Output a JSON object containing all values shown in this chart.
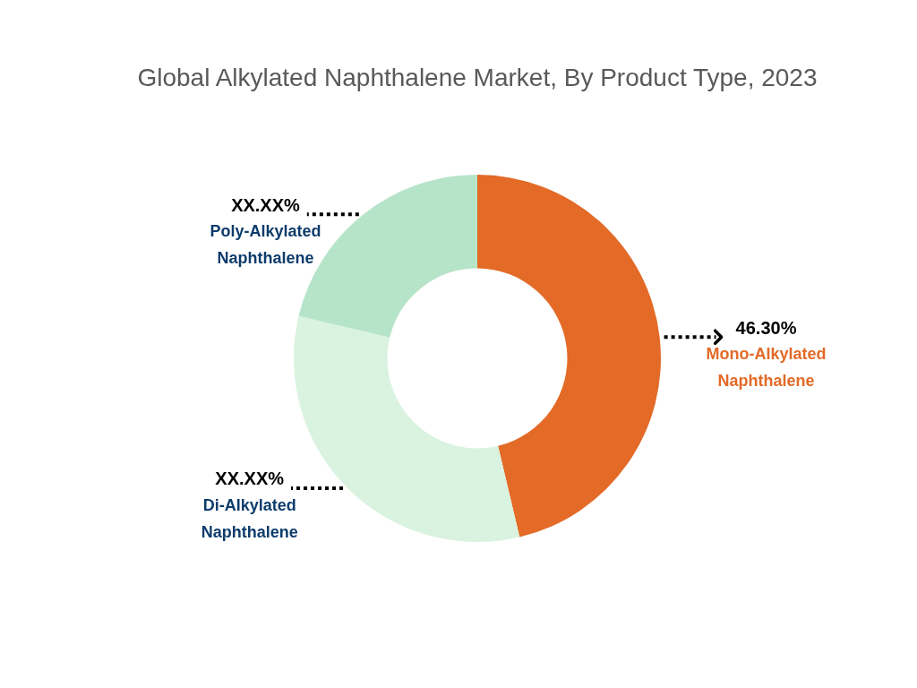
{
  "chart_data": {
    "type": "donut",
    "title": "Global Alkylated Naphthalene Market, By Product Type, 2023",
    "categories": [
      "Mono-Alkylated Naphthalene",
      "Di-Alkylated Naphthalene",
      "Poly-Alkylated Naphthalene"
    ],
    "values": [
      46.3,
      32.4,
      21.3
    ],
    "colors": [
      "#e36a27",
      "#daf3e0",
      "#b6e4c9"
    ],
    "value_labels": [
      "46.30%",
      "XX.XX%",
      "XX.XX%"
    ]
  }
}
